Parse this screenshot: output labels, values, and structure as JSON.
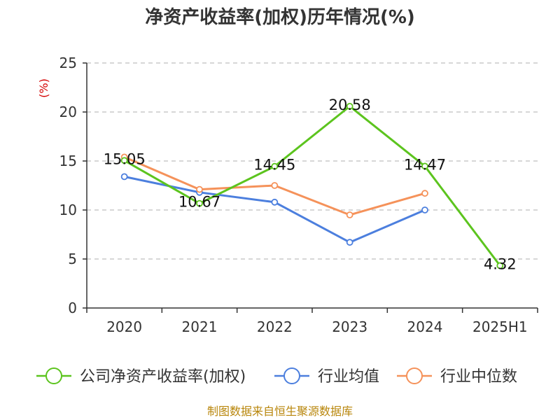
{
  "chart_data": {
    "type": "line",
    "title": "净资产收益率(加权)历年情况(%)",
    "ylabel": "(%)",
    "xlabel": "",
    "categories": [
      "2020",
      "2021",
      "2022",
      "2023",
      "2024",
      "2025H1"
    ],
    "ylim": [
      0,
      25
    ],
    "yticks": [
      0,
      5,
      10,
      15,
      20,
      25
    ],
    "grid": "horizontal-dashed",
    "legend_position": "bottom",
    "series": [
      {
        "name": "公司净资产收益率(加权)",
        "color": "#5cc41e",
        "values": [
          15.05,
          10.67,
          14.45,
          20.58,
          14.47,
          4.32
        ],
        "labels": [
          "15.05",
          "10.67",
          "14.45",
          "20.58",
          "14.47",
          "4.32"
        ]
      },
      {
        "name": "行业均值",
        "color": "#4c7fde",
        "values": [
          13.4,
          11.8,
          10.8,
          6.7,
          10.0,
          null
        ]
      },
      {
        "name": "行业中位数",
        "color": "#f5925a",
        "values": [
          15.4,
          12.1,
          12.5,
          9.5,
          11.7,
          null
        ]
      }
    ]
  },
  "source": "制图数据来自恒生聚源数据库"
}
